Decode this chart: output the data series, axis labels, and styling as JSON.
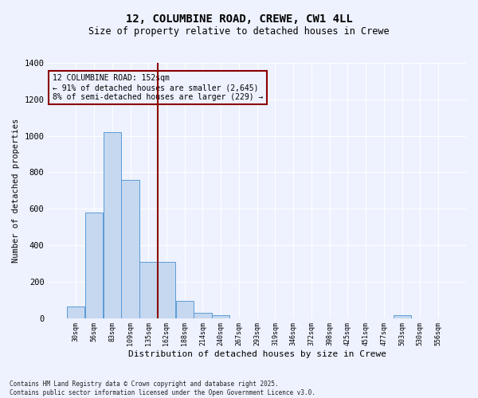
{
  "title": "12, COLUMBINE ROAD, CREWE, CW1 4LL",
  "subtitle": "Size of property relative to detached houses in Crewe",
  "xlabel": "Distribution of detached houses by size in Crewe",
  "ylabel": "Number of detached properties",
  "categories": [
    "30sqm",
    "56sqm",
    "83sqm",
    "109sqm",
    "135sqm",
    "162sqm",
    "188sqm",
    "214sqm",
    "240sqm",
    "267sqm",
    "293sqm",
    "319sqm",
    "346sqm",
    "372sqm",
    "398sqm",
    "425sqm",
    "451sqm",
    "477sqm",
    "503sqm",
    "530sqm",
    "556sqm"
  ],
  "values": [
    65,
    580,
    1020,
    760,
    310,
    310,
    95,
    30,
    15,
    0,
    0,
    0,
    0,
    0,
    0,
    0,
    0,
    0,
    15,
    0,
    0
  ],
  "bar_color": "#c5d8f0",
  "bar_edge_color": "#5b9bd5",
  "vline_color": "#8b0000",
  "annotation_text": "12 COLUMBINE ROAD: 152sqm\n← 91% of detached houses are smaller (2,645)\n8% of semi-detached houses are larger (229) →",
  "annotation_box_color": "#8b0000",
  "annotation_text_color": "#000000",
  "ylim": [
    0,
    1400
  ],
  "yticks": [
    0,
    200,
    400,
    600,
    800,
    1000,
    1200,
    1400
  ],
  "background_color": "#eef2ff",
  "grid_color": "#ffffff",
  "footer": "Contains HM Land Registry data © Crown copyright and database right 2025.\nContains public sector information licensed under the Open Government Licence v3.0.",
  "title_fontsize": 10,
  "subtitle_fontsize": 8.5,
  "bar_width": 0.97
}
